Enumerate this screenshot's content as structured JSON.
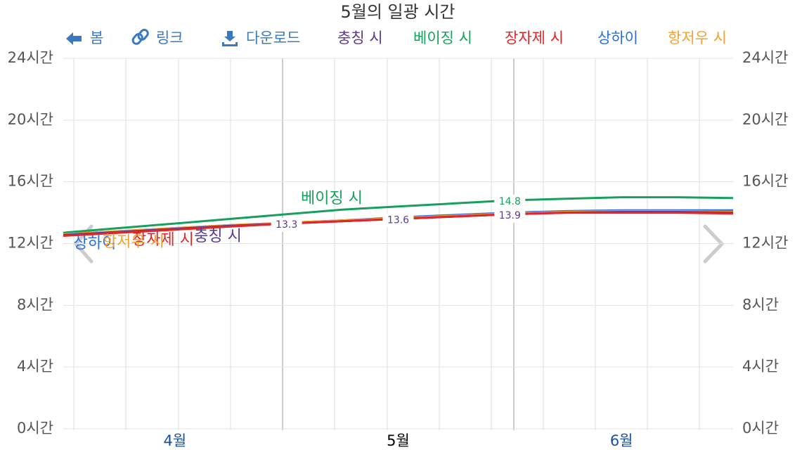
{
  "chart_data": {
    "type": "line",
    "title": "5월의 일광 시간",
    "toolbar": [
      "봄",
      "링크",
      "다운로드"
    ],
    "categories": [
      null,
      null,
      "4월",
      null,
      null,
      null,
      "5월",
      null,
      null,
      null,
      "6월",
      null,
      null
    ],
    "current_category": 6,
    "series": [
      {
        "name": "충칭 시",
        "color": "#5b3a8c",
        "values": [
          12.55,
          12.75,
          12.95,
          13.15,
          13.3,
          13.45,
          13.6,
          13.75,
          13.9,
          14.0,
          14.05,
          14.05,
          14.0
        ],
        "value_labels": [
          null,
          null,
          null,
          null,
          "13.3",
          null,
          "13.6",
          null,
          "13.9",
          null,
          null,
          null,
          null
        ]
      },
      {
        "name": "베이징 시",
        "color": "#17a05d",
        "values": [
          12.7,
          13.0,
          13.3,
          13.6,
          13.9,
          14.2,
          14.4,
          14.6,
          14.8,
          14.9,
          15.0,
          15.0,
          14.95
        ],
        "value_labels": [
          null,
          null,
          null,
          null,
          null,
          null,
          null,
          null,
          "14.8",
          null,
          null,
          null,
          null
        ]
      },
      {
        "name": "장자제 시",
        "color": "#e0262b",
        "values": [
          12.5,
          12.7,
          12.9,
          13.1,
          13.3,
          13.45,
          13.6,
          13.75,
          13.9,
          14.0,
          14.0,
          14.0,
          13.95
        ]
      },
      {
        "name": "상하이",
        "color": "#2a6fdc",
        "values": [
          12.6,
          12.8,
          13.0,
          13.2,
          13.35,
          13.5,
          13.7,
          13.85,
          14.0,
          14.1,
          14.15,
          14.15,
          14.15
        ]
      },
      {
        "name": "항저우 시",
        "color": "#f5a130",
        "values": [
          12.6,
          12.8,
          13.0,
          13.2,
          13.35,
          13.5,
          13.65,
          13.8,
          13.95,
          14.05,
          14.1,
          14.1,
          14.05
        ]
      }
    ],
    "ylim": [
      0,
      24
    ],
    "yticks": [
      {
        "value": 0,
        "label": "0시간"
      },
      {
        "value": 4,
        "label": "4시간"
      },
      {
        "value": 8,
        "label": "8시간"
      },
      {
        "value": 12,
        "label": "12시간"
      },
      {
        "value": 16,
        "label": "16시간"
      },
      {
        "value": 20,
        "label": "20시간"
      },
      {
        "value": 24,
        "label": "24시간"
      }
    ],
    "grid": true
  }
}
